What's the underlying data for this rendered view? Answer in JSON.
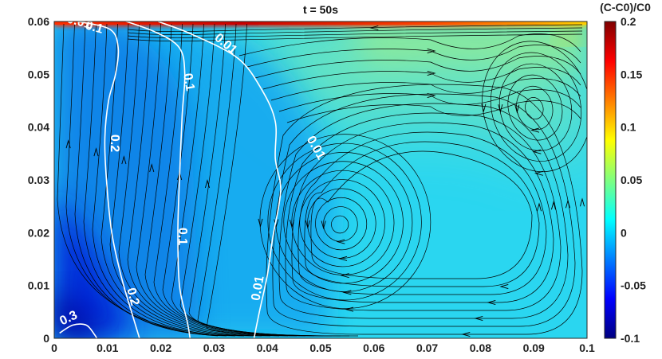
{
  "chart_data": {
    "type": "heatmap",
    "title": "t = 50s",
    "xlabel": "",
    "ylabel": "",
    "xlim": [
      0,
      0.1
    ],
    "ylim": [
      0,
      0.06
    ],
    "x_ticks": [
      "0",
      "0.01",
      "0.02",
      "0.03",
      "0.04",
      "0.05",
      "0.06",
      "0.07",
      "0.08",
      "0.09",
      "0.1"
    ],
    "y_ticks": [
      "0",
      "0.01",
      "0.02",
      "0.03",
      "0.04",
      "0.05",
      "0.06"
    ],
    "colorbar": {
      "title": "(C-C0)/C0",
      "range": [
        -0.1,
        0.2
      ],
      "ticks": [
        "-0.1",
        "-0.05",
        "0",
        "0.05",
        "0.1",
        "0.15",
        "0.2"
      ],
      "colormap": "jet"
    },
    "contour_labels": [
      "0.3",
      "0.2",
      "0.2",
      "0.1",
      "0.1",
      "0.1",
      "0.01",
      "0.01",
      "0.01",
      "0.01"
    ],
    "contours": [
      {
        "level": 0.01,
        "points": [
          [
            0.0195,
            0.06
          ],
          [
            0.026,
            0.0575
          ],
          [
            0.0345,
            0.053
          ],
          [
            0.039,
            0.047
          ],
          [
            0.0415,
            0.041
          ],
          [
            0.0415,
            0.034
          ],
          [
            0.0425,
            0.028
          ],
          [
            0.041,
            0.019
          ],
          [
            0.04,
            0.012
          ],
          [
            0.0385,
            0.005
          ],
          [
            0.0375,
            0.0
          ]
        ]
      },
      {
        "level": 0.1,
        "points": [
          [
            0.012,
            0.0605
          ],
          [
            0.019,
            0.058
          ],
          [
            0.0235,
            0.055
          ],
          [
            0.0245,
            0.05
          ],
          [
            0.024,
            0.042
          ],
          [
            0.0235,
            0.03
          ],
          [
            0.0232,
            0.02
          ],
          [
            0.0235,
            0.01
          ],
          [
            0.025,
            0.003
          ],
          [
            0.0255,
            0.0
          ]
        ]
      },
      {
        "level": 0.2,
        "points": [
          [
            0.0045,
            0.06
          ],
          [
            0.0105,
            0.0585
          ],
          [
            0.012,
            0.055
          ],
          [
            0.0115,
            0.05
          ],
          [
            0.0102,
            0.045
          ],
          [
            0.0095,
            0.038
          ],
          [
            0.0098,
            0.03
          ],
          [
            0.0108,
            0.02
          ],
          [
            0.0125,
            0.012
          ],
          [
            0.0145,
            0.005
          ],
          [
            0.016,
            0.0
          ]
        ]
      },
      {
        "level": 0.3,
        "points": [
          [
            0.001,
            0.001
          ],
          [
            0.0035,
            0.0025
          ],
          [
            0.006,
            0.0025
          ],
          [
            0.0075,
            0.0008
          ],
          [
            0.008,
            0.0
          ]
        ]
      }
    ],
    "vortices": [
      {
        "center": [
          0.0535,
          0.0215
        ],
        "rx": 0.016,
        "ry": 0.0165,
        "direction": "counterclockwise"
      },
      {
        "center": [
          0.09,
          0.0435
        ],
        "rx": 0.01,
        "ry": 0.0125,
        "direction": "counterclockwise"
      }
    ],
    "grid": false,
    "legend": "colorbar-right"
  },
  "colors": {
    "jet": [
      "#00007f",
      "#0000ff",
      "#007fff",
      "#00ffff",
      "#7fff7f",
      "#ffff00",
      "#ff7f00",
      "#ff0000",
      "#7f0000"
    ],
    "contour": "#ffffff",
    "streamline": "#000000",
    "axis": "#262626"
  }
}
